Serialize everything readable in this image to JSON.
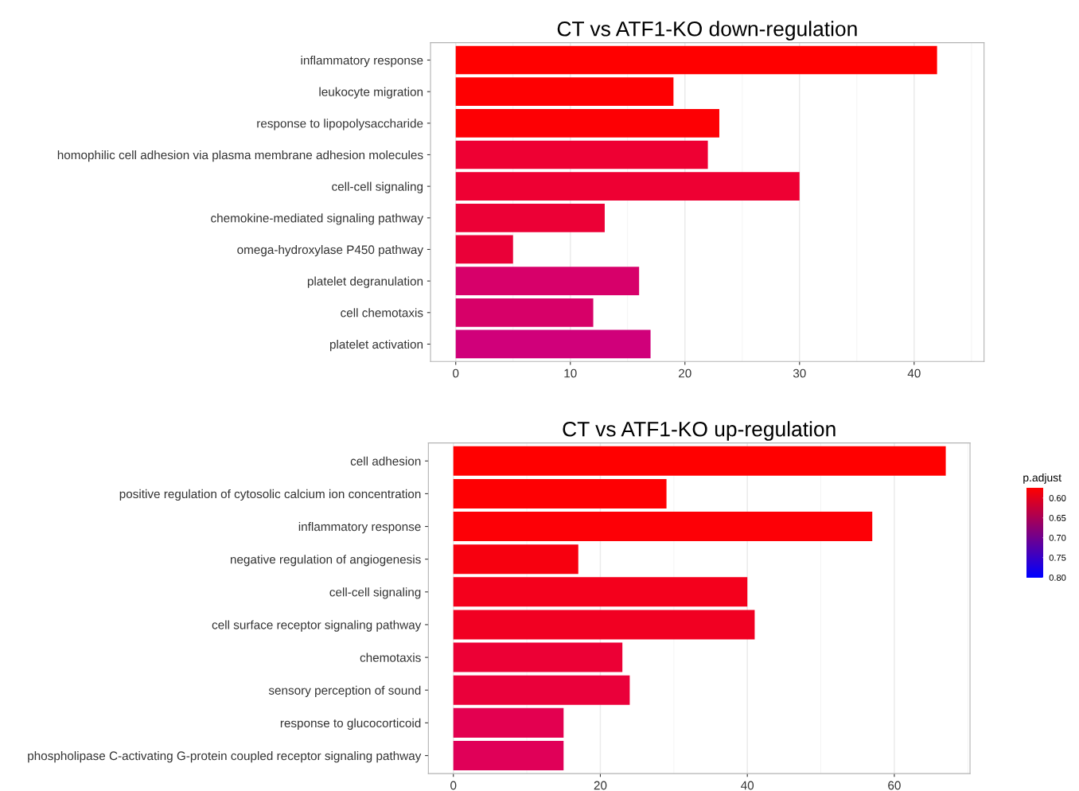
{
  "chart_data": [
    {
      "type": "bar",
      "orientation": "horizontal",
      "title": "CT vs ATF1-KO down-regulation",
      "categories": [
        "inflammatory response",
        "leukocyte migration",
        "response to lipopolysaccharide",
        "homophilic cell adhesion via plasma membrane adhesion molecules",
        "cell-cell signaling",
        "chemokine-mediated signaling pathway",
        "omega-hydroxylase P450 pathway",
        "platelet degranulation",
        "cell chemotaxis",
        "platelet activation"
      ],
      "values": [
        42,
        19,
        23,
        22,
        30,
        13,
        5,
        16,
        12,
        17
      ],
      "colors": [
        "#ff0000",
        "#fe0002",
        "#fd0004",
        "#ee0033",
        "#ee0033",
        "#ec0036",
        "#ea0038",
        "#d7006a",
        "#d70068",
        "#d0007a"
      ],
      "xlim": [
        -2.2,
        46.1
      ],
      "xticks": [
        0,
        10,
        20,
        30,
        40
      ],
      "grid": "x"
    },
    {
      "type": "bar",
      "orientation": "horizontal",
      "title": "CT vs ATF1-KO up-regulation",
      "categories": [
        "cell adhesion",
        "positive regulation of cytosolic calcium ion concentration",
        "inflammatory response",
        "negative regulation of angiogenesis",
        "cell-cell signaling",
        "cell surface receptor signaling pathway",
        "chemotaxis",
        "sensory perception of sound",
        "response to glucocorticoid",
        "phospholipase C-activating G-protein coupled receptor signaling pathway"
      ],
      "values": [
        67,
        29,
        57,
        17,
        40,
        41,
        23,
        24,
        15,
        15
      ],
      "colors": [
        "#ff0000",
        "#fe0003",
        "#fd0006",
        "#f7000f",
        "#f4001c",
        "#f10022",
        "#ec0035",
        "#ea003a",
        "#e30050",
        "#e00058"
      ],
      "xlim": [
        -3.4,
        70.3
      ],
      "xticks": [
        0,
        20,
        40,
        60
      ],
      "grid": "x",
      "clabel": "p.adjust",
      "clim": [
        0.575,
        0.8
      ],
      "cticks": [
        {
          "value": 0.6,
          "label": "0.60"
        },
        {
          "value": 0.65,
          "label": "0.65"
        },
        {
          "value": 0.7,
          "label": "0.70"
        },
        {
          "value": 0.75,
          "label": "0.75"
        },
        {
          "value": 0.8,
          "label": "0.80"
        }
      ]
    }
  ]
}
